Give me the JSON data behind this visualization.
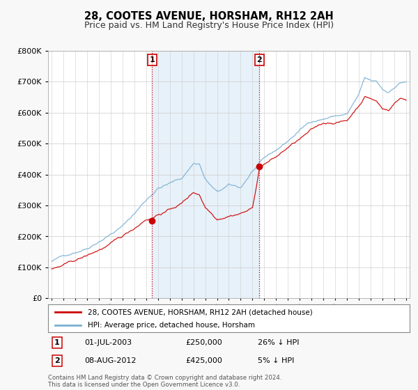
{
  "title": "28, COOTES AVENUE, HORSHAM, RH12 2AH",
  "subtitle": "Price paid vs. HM Land Registry's House Price Index (HPI)",
  "legend_line1": "28, COOTES AVENUE, HORSHAM, RH12 2AH (detached house)",
  "legend_line2": "HPI: Average price, detached house, Horsham",
  "annotation1_label": "1",
  "annotation1_date": "01-JUL-2003",
  "annotation1_price": "£250,000",
  "annotation1_hpi": "26% ↓ HPI",
  "annotation2_label": "2",
  "annotation2_date": "08-AUG-2012",
  "annotation2_price": "£425,000",
  "annotation2_hpi": "5% ↓ HPI",
  "footer": "Contains HM Land Registry data © Crown copyright and database right 2024.\nThis data is licensed under the Open Government Licence v3.0.",
  "ylim": [
    0,
    800000
  ],
  "xlim_left": 1994.7,
  "xlim_right": 2025.3,
  "background_color": "#f8f8f8",
  "plot_bg_color": "#ffffff",
  "red_color": "#cc0000",
  "blue_color": "#7ab0d4",
  "dashed_red": "#cc0000",
  "shade_color": "#d8e8f5",
  "marker1_x": 2003.5,
  "marker1_y": 250000,
  "marker2_x": 2012.58,
  "marker2_y": 425000,
  "yticks": [
    0,
    100000,
    200000,
    300000,
    400000,
    500000,
    600000,
    700000,
    800000
  ]
}
